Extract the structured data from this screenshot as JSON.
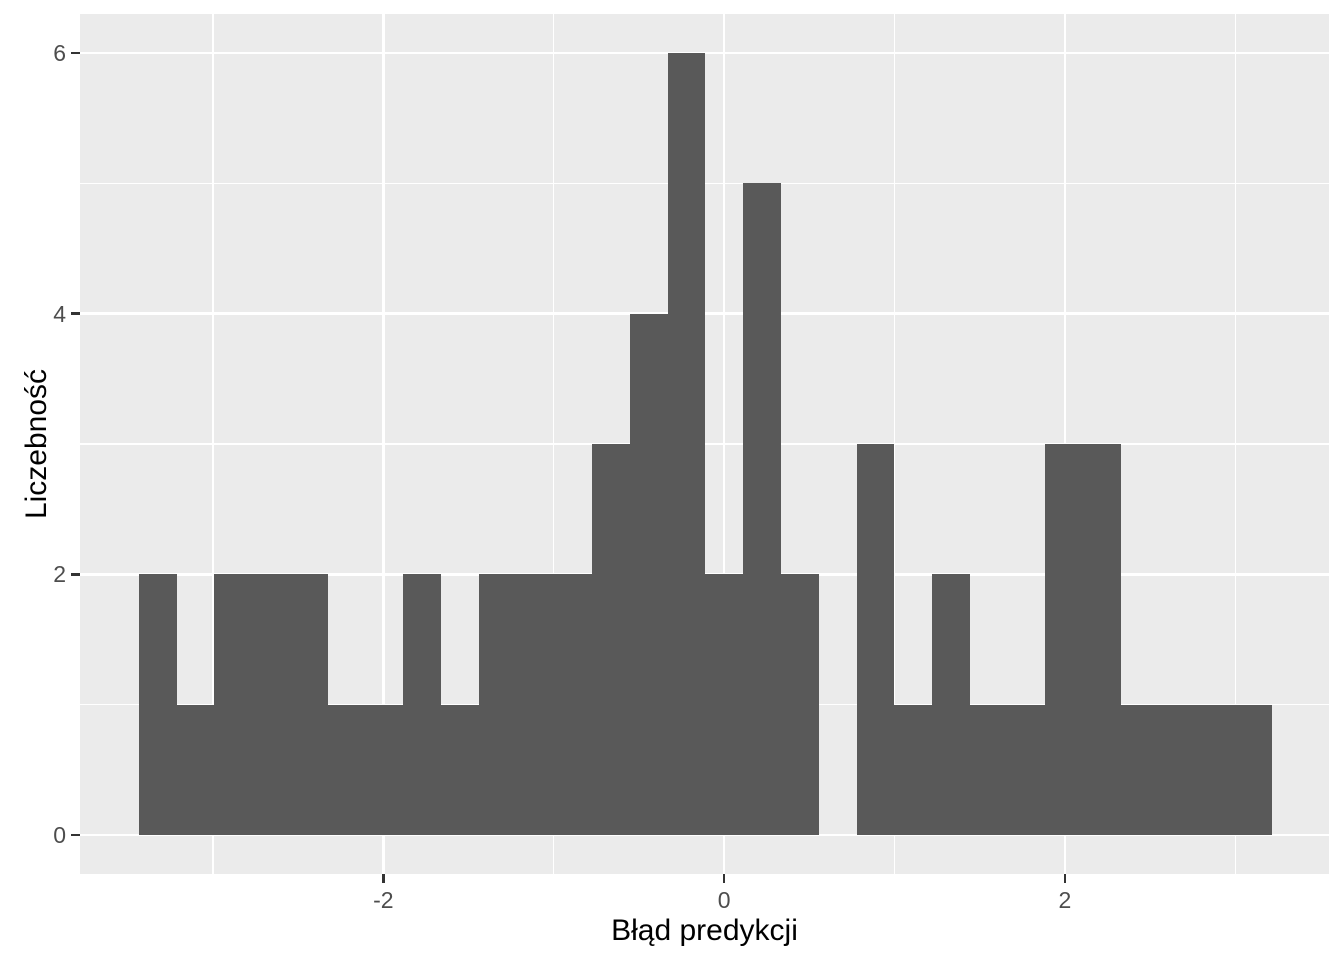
{
  "figure": {
    "background": "#FFFFFF"
  },
  "chart_data": {
    "type": "bar",
    "subtype": "histogram",
    "title": "",
    "xlabel": "Błąd predykcji",
    "ylabel": "Liczebność",
    "bin_start": -3.435,
    "bin_width": 0.2217,
    "counts": [
      2,
      1,
      2,
      2,
      2,
      1,
      1,
      2,
      1,
      2,
      2,
      2,
      3,
      4,
      6,
      2,
      5,
      2,
      0,
      3,
      1,
      2,
      1,
      1,
      3,
      3,
      1,
      1,
      1,
      1
    ],
    "n_total": 60,
    "x_range": [
      -3.78,
      3.55
    ],
    "y_range": [
      -0.3,
      6.3
    ],
    "x_major_ticks": [
      -2,
      0,
      2
    ],
    "x_tick_labels": [
      "-2",
      "0",
      "2"
    ],
    "x_minor_ticks": [
      -3,
      -1,
      1,
      3
    ],
    "y_major_ticks": [
      0,
      2,
      4,
      6
    ],
    "y_tick_labels": [
      "0",
      "2",
      "4",
      "6"
    ],
    "y_minor_ticks": [
      1,
      3,
      5
    ],
    "grid": true,
    "legend_position": "none",
    "colors": {
      "bar_fill": "#595959",
      "panel_background": "#EBEBEB",
      "grid_major": "#FFFFFF",
      "grid_minor": "#FFFFFF",
      "tick_label": "#4D4D4D",
      "axis_title": "#000000",
      "tick_mark": "#333333"
    }
  }
}
